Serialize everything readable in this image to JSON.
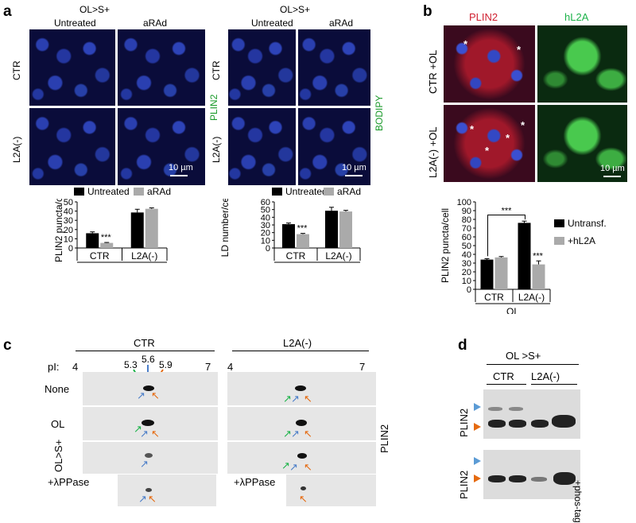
{
  "panels": {
    "a": {
      "label": "a",
      "left": {
        "group": "OL>S+",
        "col1": "Untreated",
        "col2": "aRAd",
        "row1": "CTR",
        "row2": "L2A(-)",
        "stain": "PLIN2",
        "scale": "10 µm"
      },
      "right": {
        "group": "OL>S+",
        "col1": "Untreated",
        "col2": "aRAd",
        "row1": "CTR",
        "row2": "L2A(-)",
        "stain": "BODIPY",
        "scale": "10 µm"
      }
    },
    "b": {
      "label": "b",
      "col1": "PLIN2",
      "col2": "hL2A",
      "row1": "CTR +OL",
      "row2": "L2A(-) +OL",
      "scale": "10 µm",
      "asterisk": "*"
    },
    "c": {
      "label": "c",
      "ctr": "CTR",
      "l2a": "L2A(-)",
      "pi": "pI:",
      "pi4": "4",
      "pi7": "7",
      "pi53": "5.3",
      "pi56": "5.6",
      "pi59": "5.9",
      "rows": [
        "None",
        "OL",
        "OL>S+"
      ],
      "lpp": "+λPPase",
      "side": "PLIN2"
    },
    "d": {
      "label": "d",
      "group": "OL >S+",
      "ctr": "CTR",
      "l2a": "L2A(-)",
      "row": "PLIN2",
      "phos": "+phos-tag"
    }
  },
  "chart_data": [
    {
      "type": "bar",
      "ylabel": "PLIN2 puncta/cell",
      "categories": [
        "CTR",
        "L2A(-)"
      ],
      "group_label": "OL>S+",
      "ylim": [
        0,
        50
      ],
      "yticks": [
        "0",
        "10",
        "20",
        "30",
        "40",
        "50"
      ],
      "series": [
        {
          "name": "Untreated",
          "color": "#000000",
          "values": [
            16,
            38.5
          ],
          "errors": [
            1.5,
            3.5
          ]
        },
        {
          "name": "aRAd",
          "color": "#aaaaaa",
          "values": [
            5.5,
            42.5
          ],
          "errors": [
            0.5,
            1
          ]
        }
      ],
      "annotations": [
        "***"
      ]
    },
    {
      "type": "bar",
      "ylabel": "LD number/cell",
      "categories": [
        "CTR",
        "L2A(-)"
      ],
      "group_label": "OL>S+",
      "ylim": [
        0,
        60
      ],
      "yticks": [
        "0",
        "10",
        "20",
        "30",
        "40",
        "50",
        "60"
      ],
      "series": [
        {
          "name": "Untreated",
          "color": "#000000",
          "values": [
            31,
            48.5
          ],
          "errors": [
            1.5,
            4.5
          ]
        },
        {
          "name": "aRAd",
          "color": "#aaaaaa",
          "values": [
            18,
            47.5
          ],
          "errors": [
            1,
            1.5
          ]
        }
      ],
      "annotations": [
        "***"
      ]
    },
    {
      "type": "bar",
      "ylabel": "PLIN2 puncta/cell",
      "categories": [
        "CTR",
        "L2A(-)"
      ],
      "group_label": "OL",
      "ylim": [
        0,
        100
      ],
      "yticks": [
        "0",
        "10",
        "20",
        "30",
        "40",
        "50",
        "60",
        "70",
        "80",
        "90",
        "100"
      ],
      "series": [
        {
          "name": "Untransf.",
          "color": "#000000",
          "values": [
            34,
            76
          ],
          "errors": [
            1,
            2
          ]
        },
        {
          "name": "+hL2A",
          "color": "#aaaaaa",
          "values": [
            36.5,
            28.5
          ],
          "errors": [
            1,
            4
          ]
        }
      ],
      "annotations": [
        "***",
        "***"
      ]
    }
  ]
}
